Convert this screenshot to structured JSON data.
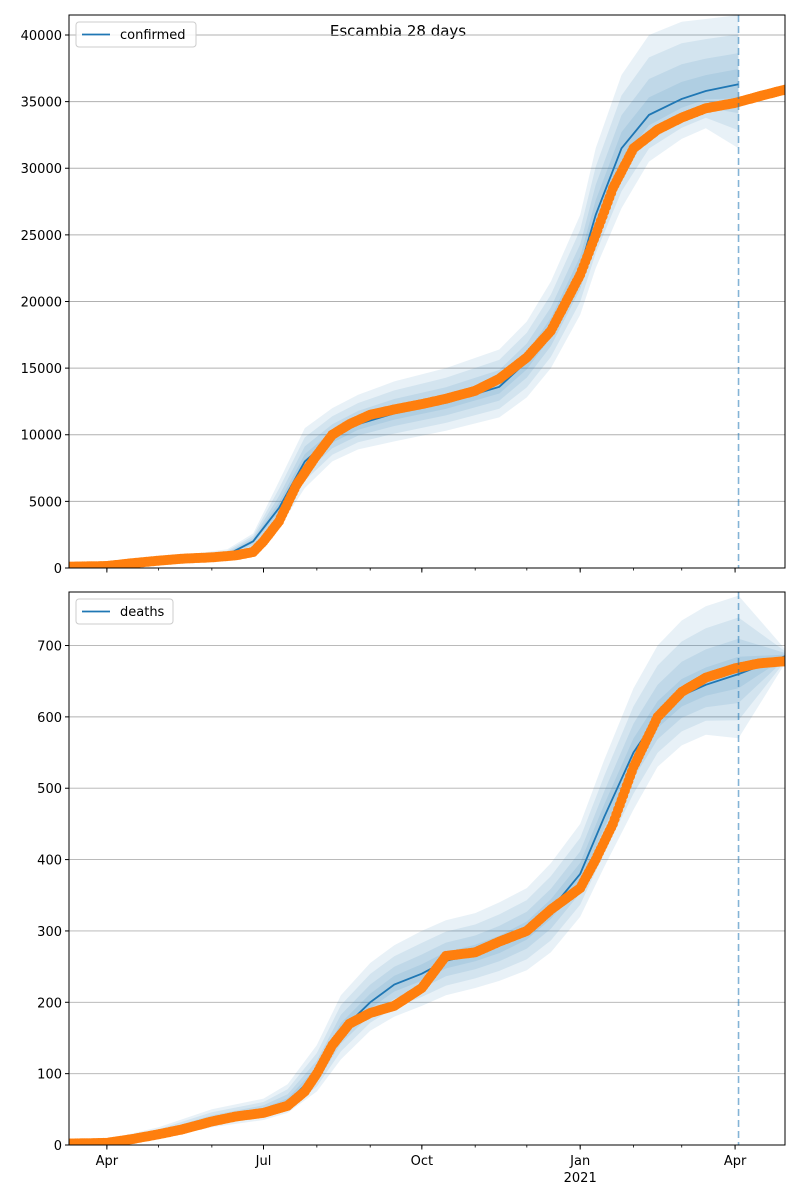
{
  "title": "Escambia 28 days",
  "colors": {
    "model_line": "#1f77b4",
    "observed": "#ff7f0e",
    "band": "#1f77b4",
    "grid": "#b0b0b0",
    "forecast_line": "#1f77b4"
  },
  "chart_data": [
    {
      "type": "line",
      "title": "Escambia 28 days",
      "legend": {
        "label": "confirmed",
        "placement": "top-left"
      },
      "xlim": [
        "2020-03-10",
        "2021-04-30"
      ],
      "ylim": [
        0,
        41500
      ],
      "x_ticks": [
        {
          "date": "2020-04-01",
          "label": "Apr"
        },
        {
          "date": "2020-07-01",
          "label": "Jul"
        },
        {
          "date": "2020-10-01",
          "label": "Oct"
        },
        {
          "date": "2021-01-01",
          "label": "Jan"
        },
        {
          "date": "2021-04-01",
          "label": "Apr"
        }
      ],
      "x_year_label": "2021",
      "y_ticks": [
        0,
        5000,
        10000,
        15000,
        20000,
        25000,
        30000,
        35000,
        40000
      ],
      "grid": "horizontal",
      "forecast_date": "2021-04-03",
      "series": [
        {
          "name": "confirmed",
          "role": "model",
          "x": [
            "2020-03-10",
            "2020-04-15",
            "2020-05-15",
            "2020-06-10",
            "2020-06-25",
            "2020-07-10",
            "2020-07-25",
            "2020-08-10",
            "2020-08-25",
            "2020-09-15",
            "2020-10-15",
            "2020-11-15",
            "2020-12-01",
            "2020-12-15",
            "2021-01-01",
            "2021-01-10",
            "2021-01-25",
            "2021-02-10",
            "2021-03-01",
            "2021-03-15",
            "2021-04-03"
          ],
          "values": [
            100,
            300,
            700,
            1000,
            2000,
            4500,
            8000,
            9800,
            10800,
            11600,
            12400,
            13600,
            15500,
            18000,
            22500,
            26500,
            31500,
            34000,
            35200,
            35800,
            36300
          ]
        },
        {
          "name": "band_95",
          "role": "band",
          "x": [
            "2020-03-10",
            "2020-04-15",
            "2020-05-15",
            "2020-06-10",
            "2020-06-25",
            "2020-07-10",
            "2020-07-25",
            "2020-08-10",
            "2020-08-25",
            "2020-09-15",
            "2020-10-15",
            "2020-11-15",
            "2020-12-01",
            "2020-12-15",
            "2021-01-01",
            "2021-01-10",
            "2021-01-25",
            "2021-02-10",
            "2021-03-01",
            "2021-03-15",
            "2021-04-03"
          ],
          "lower": [
            0,
            150,
            450,
            700,
            1400,
            3000,
            6000,
            8000,
            8900,
            9500,
            10300,
            11300,
            12800,
            15000,
            19000,
            22500,
            27000,
            30500,
            32200,
            33000,
            31500
          ],
          "upper": [
            200,
            450,
            950,
            1400,
            2600,
            6500,
            10500,
            12000,
            13000,
            14000,
            15000,
            16400,
            18500,
            21500,
            26500,
            31500,
            37000,
            40000,
            41000,
            41200,
            41500
          ]
        },
        {
          "name": "confirmed_observed",
          "role": "observed",
          "x": [
            "2020-03-10",
            "2020-04-01",
            "2020-04-15",
            "2020-05-01",
            "2020-05-15",
            "2020-06-01",
            "2020-06-15",
            "2020-06-25",
            "2020-07-01",
            "2020-07-10",
            "2020-07-20",
            "2020-07-31",
            "2020-08-10",
            "2020-08-20",
            "2020-09-01",
            "2020-09-15",
            "2020-10-01",
            "2020-10-15",
            "2020-11-01",
            "2020-11-15",
            "2020-12-01",
            "2020-12-15",
            "2021-01-01",
            "2021-01-10",
            "2021-01-20",
            "2021-02-01",
            "2021-02-15",
            "2021-03-01",
            "2021-03-15",
            "2021-04-01",
            "2021-04-15",
            "2021-04-30"
          ],
          "values": [
            100,
            150,
            350,
            550,
            700,
            800,
            950,
            1200,
            2000,
            3500,
            6200,
            8300,
            10000,
            10800,
            11500,
            11900,
            12300,
            12700,
            13300,
            14200,
            15800,
            17800,
            22000,
            25000,
            28500,
            31500,
            32900,
            33800,
            34500,
            34900,
            35400,
            35900
          ]
        }
      ]
    },
    {
      "type": "line",
      "legend": {
        "label": "deaths",
        "placement": "top-left"
      },
      "xlim": [
        "2020-03-10",
        "2021-04-30"
      ],
      "ylim": [
        0,
        775
      ],
      "x_ticks": [
        {
          "date": "2020-04-01",
          "label": "Apr"
        },
        {
          "date": "2020-07-01",
          "label": "Jul"
        },
        {
          "date": "2020-10-01",
          "label": "Oct"
        },
        {
          "date": "2021-01-01",
          "label": "Jan"
        },
        {
          "date": "2021-04-01",
          "label": "Apr"
        }
      ],
      "x_year_label": "2021",
      "y_ticks": [
        0,
        100,
        200,
        300,
        400,
        500,
        600,
        700
      ],
      "grid": "horizontal",
      "forecast_date": "2021-04-03",
      "series": [
        {
          "name": "deaths",
          "role": "model",
          "x": [
            "2020-03-10",
            "2020-04-01",
            "2020-05-01",
            "2020-06-01",
            "2020-07-01",
            "2020-07-15",
            "2020-08-01",
            "2020-08-15",
            "2020-09-01",
            "2020-09-15",
            "2020-10-01",
            "2020-10-15",
            "2020-11-01",
            "2020-11-15",
            "2020-12-01",
            "2020-12-15",
            "2021-01-01",
            "2021-01-15",
            "2021-02-01",
            "2021-02-15",
            "2021-03-01",
            "2021-03-15",
            "2021-04-03",
            "2021-04-30"
          ],
          "values": [
            2,
            3,
            15,
            35,
            48,
            60,
            100,
            160,
            200,
            225,
            240,
            258,
            268,
            280,
            300,
            330,
            380,
            460,
            550,
            600,
            630,
            645,
            660,
            685
          ]
        },
        {
          "name": "band_95",
          "role": "band",
          "x": [
            "2020-03-10",
            "2020-04-01",
            "2020-05-01",
            "2020-06-01",
            "2020-07-01",
            "2020-07-15",
            "2020-08-01",
            "2020-08-15",
            "2020-09-01",
            "2020-09-15",
            "2020-10-01",
            "2020-10-15",
            "2020-11-01",
            "2020-11-15",
            "2020-12-01",
            "2020-12-15",
            "2021-01-01",
            "2021-01-15",
            "2021-02-01",
            "2021-02-15",
            "2021-03-01",
            "2021-03-15",
            "2021-04-03",
            "2021-04-30"
          ],
          "lower": [
            0,
            0,
            8,
            25,
            35,
            45,
            75,
            120,
            160,
            180,
            195,
            210,
            220,
            230,
            245,
            270,
            320,
            390,
            470,
            530,
            560,
            575,
            570,
            675
          ],
          "upper": [
            6,
            8,
            25,
            50,
            65,
            85,
            140,
            210,
            255,
            280,
            300,
            315,
            325,
            340,
            360,
            395,
            450,
            540,
            640,
            700,
            735,
            755,
            770,
            695
          ]
        },
        {
          "name": "deaths_observed",
          "role": "observed",
          "x": [
            "2020-03-10",
            "2020-04-01",
            "2020-04-15",
            "2020-05-01",
            "2020-05-15",
            "2020-06-01",
            "2020-06-15",
            "2020-07-01",
            "2020-07-15",
            "2020-07-25",
            "2020-08-01",
            "2020-08-10",
            "2020-08-20",
            "2020-09-01",
            "2020-09-15",
            "2020-10-01",
            "2020-10-15",
            "2020-11-01",
            "2020-11-15",
            "2020-12-01",
            "2020-12-15",
            "2021-01-01",
            "2021-01-10",
            "2021-01-20",
            "2021-02-01",
            "2021-02-15",
            "2021-03-01",
            "2021-03-15",
            "2021-04-01",
            "2021-04-15",
            "2021-04-30"
          ],
          "values": [
            2,
            3,
            8,
            15,
            22,
            33,
            40,
            45,
            55,
            75,
            100,
            140,
            170,
            185,
            195,
            220,
            265,
            270,
            285,
            300,
            330,
            360,
            400,
            450,
            530,
            600,
            635,
            655,
            668,
            675,
            678
          ]
        }
      ]
    }
  ]
}
